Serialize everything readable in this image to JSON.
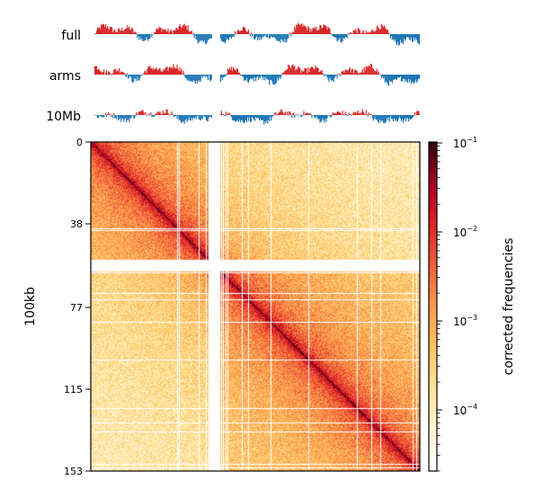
{
  "chart_data": [
    {
      "type": "area",
      "panel": "eigenvector-tracks",
      "tracks": [
        {
          "name": "full",
          "positive_color": "#d62728",
          "negative_color": "#1f77b4"
        },
        {
          "name": "arms",
          "positive_color": "#d62728",
          "negative_color": "#1f77b4"
        },
        {
          "name": "10Mb",
          "positive_color": "#d62728",
          "negative_color": "#1f77b4"
        }
      ],
      "gap_bins": [
        [
          55,
          59
        ]
      ]
    },
    {
      "type": "heatmap",
      "panel": "contact-matrix",
      "ylabel": "100kb",
      "yticks": [
        "0",
        "38",
        "77",
        "115",
        "153"
      ],
      "ytick_values": [
        0,
        38,
        77,
        115,
        153
      ],
      "range": [
        0,
        153
      ],
      "masked_bins": [
        [
          55,
          60
        ]
      ],
      "colorbar": {
        "label": "corrected frequencies",
        "scale": "log",
        "range": [
          2e-05,
          0.1
        ],
        "ticks": [
          {
            "value": 0.1,
            "base": "10",
            "exp": "−1"
          },
          {
            "value": 0.01,
            "base": "10",
            "exp": "−2"
          },
          {
            "value": 0.001,
            "base": "10",
            "exp": "−3"
          },
          {
            "value": 0.0001,
            "base": "10",
            "exp": "−4"
          }
        ],
        "colormap": "fall",
        "colors": [
          "#ffffff",
          "#fff5d6",
          "#ffe49a",
          "#fec261",
          "#fb9b4c",
          "#f2603a",
          "#dd2a26",
          "#b10026",
          "#6a0018",
          "#2b0008"
        ]
      }
    }
  ]
}
